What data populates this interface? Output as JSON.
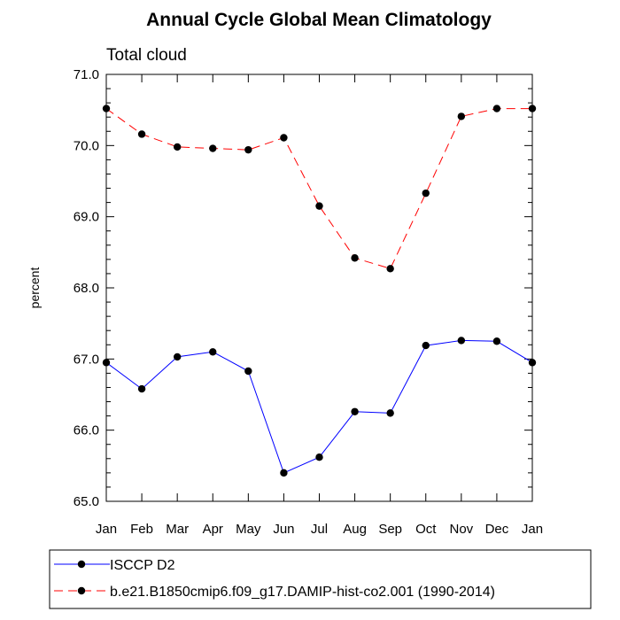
{
  "chart_data": {
    "type": "line",
    "title": "Annual Cycle Global Mean Climatology",
    "subtitle": "Total cloud",
    "xlabel": "",
    "ylabel": "percent",
    "categories": [
      "Jan",
      "Feb",
      "Mar",
      "Apr",
      "May",
      "Jun",
      "Jul",
      "Aug",
      "Sep",
      "Oct",
      "Nov",
      "Dec",
      "Jan"
    ],
    "ylim": [
      65.0,
      71.0
    ],
    "yticks": [
      "65.0",
      "66.0",
      "67.0",
      "68.0",
      "69.0",
      "70.0",
      "71.0"
    ],
    "grid": false,
    "legend_position": "bottom",
    "series": [
      {
        "name": "ISCCP D2",
        "color": "#0000ff",
        "dash": "solid",
        "values": [
          66.95,
          66.58,
          67.03,
          67.1,
          66.83,
          65.4,
          65.62,
          66.26,
          66.24,
          67.19,
          67.26,
          67.25,
          66.95
        ]
      },
      {
        "name": "b.e21.B1850cmip6.f09_g17.DAMIP-hist-co2.001 (1990-2014)",
        "color": "#ff0000",
        "dash": "dashed",
        "values": [
          70.52,
          70.16,
          69.98,
          69.96,
          69.94,
          70.11,
          69.15,
          68.42,
          68.27,
          69.33,
          70.41,
          70.52,
          70.52
        ]
      }
    ]
  }
}
